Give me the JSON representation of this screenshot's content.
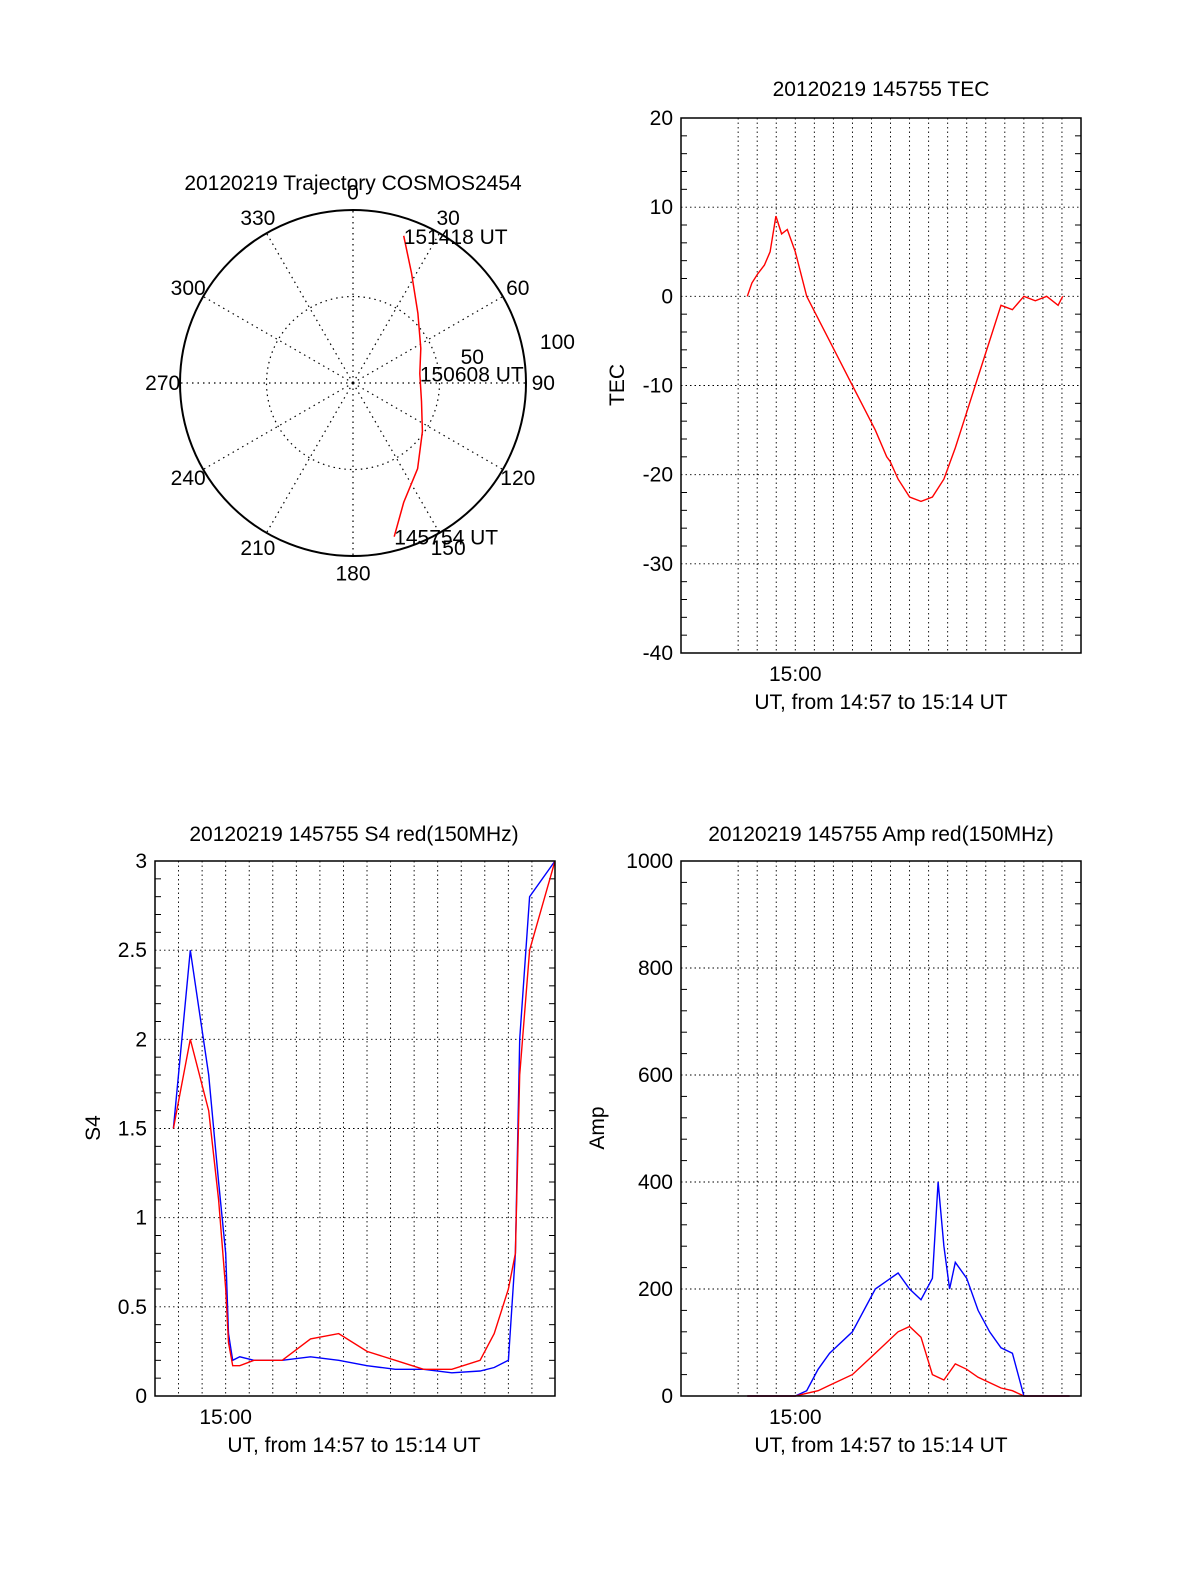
{
  "chart_data": [
    {
      "type": "polar",
      "title": "20120219 Trajectory COSMOS2454",
      "angle_labels": [
        "0",
        "30",
        "60",
        "90",
        "120",
        "150",
        "180",
        "210",
        "240",
        "270",
        "300",
        "330"
      ],
      "radius_labels": [
        "50",
        "100"
      ],
      "angles_deg": [
        0,
        30,
        60,
        90,
        120,
        150,
        180,
        210,
        240,
        270,
        300,
        330
      ],
      "radii": [
        50,
        100
      ],
      "series": [
        {
          "color": "#ff0000",
          "points": [
            {
              "az": 19,
              "r": 90
            },
            {
              "az": 28,
              "r": 72
            },
            {
              "az": 43,
              "r": 55
            },
            {
              "az": 63,
              "r": 44
            },
            {
              "az": 82,
              "r": 39
            },
            {
              "az": 105,
              "r": 41
            },
            {
              "az": 125,
              "r": 49
            },
            {
              "az": 143,
              "r": 62
            },
            {
              "az": 157,
              "r": 75
            },
            {
              "az": 165,
              "r": 92
            }
          ]
        }
      ],
      "annotations": [
        {
          "text": "151418 UT",
          "az": 19,
          "r": 90
        },
        {
          "text": "150608 UT",
          "az": 82,
          "r": 39
        },
        {
          "text": "145754 UT",
          "az": 165,
          "r": 92
        }
      ]
    },
    {
      "type": "line",
      "title": "20120219 145755 TEC",
      "xlabel": "UT, from 14:57 to 15:14 UT",
      "ylabel": "TEC",
      "xlim": [
        14.9,
        15.25
      ],
      "ylim": [
        -40,
        20
      ],
      "xticks": [
        {
          "value": 15.0,
          "label": "15:00"
        }
      ],
      "yticks": [
        {
          "value": 20,
          "label": "20"
        },
        {
          "value": 10,
          "label": "10"
        },
        {
          "value": 0,
          "label": "0"
        },
        {
          "value": -10,
          "label": "-10"
        },
        {
          "value": -20,
          "label": "-20"
        },
        {
          "value": -30,
          "label": "-30"
        },
        {
          "value": -40,
          "label": "-40"
        }
      ],
      "grid": true,
      "series": [
        {
          "color": "#ff0000",
          "x": [
            14.958,
            14.962,
            14.967,
            14.973,
            14.978,
            14.983,
            14.988,
            14.993,
            15.0,
            15.01,
            15.02,
            15.03,
            15.04,
            15.05,
            15.06,
            15.07,
            15.08,
            15.083,
            15.09,
            15.1,
            15.11,
            15.12,
            15.13,
            15.14,
            15.15,
            15.16,
            15.17,
            15.18,
            15.19,
            15.2,
            15.21,
            15.22,
            15.23,
            15.234
          ],
          "y": [
            0,
            1.5,
            2.5,
            3.5,
            5,
            9,
            7,
            7.5,
            5,
            0,
            -2.5,
            -5,
            -7.5,
            -10,
            -12.5,
            -15,
            -18,
            -18.5,
            -20.5,
            -22.5,
            -23,
            -22.5,
            -20.5,
            -17,
            -13,
            -9,
            -5,
            -1,
            -1.5,
            0,
            -0.5,
            0,
            -1,
            0
          ]
        }
      ]
    },
    {
      "type": "line",
      "title": "20120219 145755 S4 red(150MHz)",
      "xlabel": "UT, from 14:57 to 15:14 UT",
      "ylabel": "S4",
      "xlim": [
        14.95,
        15.233
      ],
      "ylim": [
        0,
        3
      ],
      "xticks": [
        {
          "value": 15.0,
          "label": "15:00"
        }
      ],
      "yticks": [
        {
          "value": 0,
          "label": "0"
        },
        {
          "value": 0.5,
          "label": "0.5"
        },
        {
          "value": 1,
          "label": "1"
        },
        {
          "value": 1.5,
          "label": "1.5"
        },
        {
          "value": 2,
          "label": "2"
        },
        {
          "value": 2.5,
          "label": "2.5"
        },
        {
          "value": 3,
          "label": "3"
        }
      ],
      "grid": true,
      "series": [
        {
          "color": "#0000ff",
          "x": [
            14.963,
            14.975,
            14.988,
            14.995,
            15.0,
            15.002,
            15.005,
            15.01,
            15.02,
            15.04,
            15.06,
            15.08,
            15.1,
            15.12,
            15.14,
            15.16,
            15.18,
            15.19,
            15.2,
            15.205,
            15.208,
            15.215,
            15.233
          ],
          "y": [
            1.5,
            2.5,
            1.8,
            1.2,
            0.8,
            0.35,
            0.2,
            0.22,
            0.2,
            0.2,
            0.22,
            0.2,
            0.17,
            0.15,
            0.15,
            0.13,
            0.14,
            0.16,
            0.2,
            0.8,
            2.0,
            2.8,
            3.0
          ]
        },
        {
          "color": "#ff0000",
          "x": [
            14.963,
            14.975,
            14.988,
            14.995,
            15.0,
            15.002,
            15.005,
            15.01,
            15.02,
            15.04,
            15.06,
            15.08,
            15.1,
            15.12,
            15.14,
            15.16,
            15.18,
            15.19,
            15.2,
            15.205,
            15.208,
            15.215,
            15.233
          ],
          "y": [
            1.5,
            2.0,
            1.6,
            1.1,
            0.6,
            0.3,
            0.17,
            0.17,
            0.2,
            0.2,
            0.32,
            0.35,
            0.25,
            0.2,
            0.15,
            0.15,
            0.2,
            0.35,
            0.6,
            0.8,
            1.8,
            2.5,
            3.0
          ]
        }
      ]
    },
    {
      "type": "line",
      "title": "20120219 145755 Amp red(150MHz)",
      "xlabel": "UT, from 14:57 to 15:14 UT",
      "ylabel": "Amp",
      "xlim": [
        14.9,
        15.25
      ],
      "ylim": [
        0,
        1000
      ],
      "xticks": [
        {
          "value": 15.0,
          "label": "15:00"
        }
      ],
      "yticks": [
        {
          "value": 0,
          "label": "0"
        },
        {
          "value": 200,
          "label": "200"
        },
        {
          "value": 400,
          "label": "400"
        },
        {
          "value": 600,
          "label": "600"
        },
        {
          "value": 800,
          "label": "800"
        },
        {
          "value": 1000,
          "label": "1000"
        }
      ],
      "grid": true,
      "series": [
        {
          "color": "#0000ff",
          "x": [
            14.958,
            15.0,
            15.01,
            15.02,
            15.03,
            15.05,
            15.07,
            15.09,
            15.1,
            15.11,
            15.12,
            15.125,
            15.13,
            15.135,
            15.14,
            15.15,
            15.16,
            15.17,
            15.18,
            15.19,
            15.2,
            15.24
          ],
          "y": [
            0,
            0,
            10,
            50,
            80,
            120,
            200,
            230,
            200,
            180,
            220,
            400,
            280,
            200,
            250,
            220,
            160,
            120,
            90,
            80,
            0,
            0
          ]
        },
        {
          "color": "#ff0000",
          "x": [
            14.958,
            15.0,
            15.01,
            15.02,
            15.03,
            15.05,
            15.07,
            15.09,
            15.1,
            15.11,
            15.12,
            15.13,
            15.14,
            15.15,
            15.16,
            15.17,
            15.18,
            15.19,
            15.2,
            15.24
          ],
          "y": [
            0,
            0,
            5,
            10,
            20,
            40,
            80,
            120,
            130,
            110,
            40,
            30,
            60,
            50,
            35,
            25,
            15,
            10,
            0,
            0
          ]
        }
      ]
    }
  ]
}
